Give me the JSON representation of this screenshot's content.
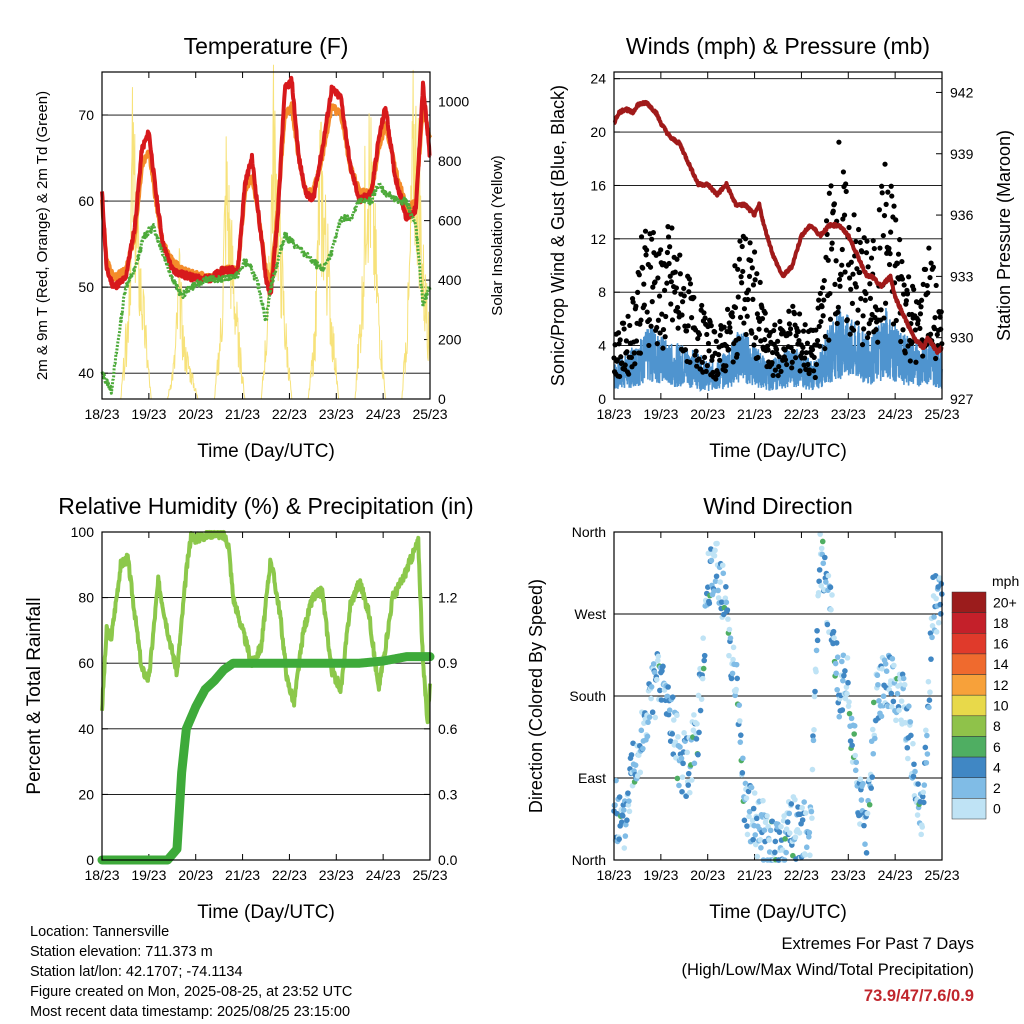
{
  "colors": {
    "temp_2m": "#d7191c",
    "temp_9m": "#f48c2a",
    "dewpoint": "#4daa3a",
    "solar": "#f7e27a",
    "wind_sonic": "#4f94cf",
    "wind_gust": "#000000",
    "pressure": "#a01a1a",
    "rh": "#8cc84b",
    "precip": "#3eaa3a"
  },
  "chart_data": [
    {
      "type": "line",
      "title": "Temperature (F)",
      "xlabel": "Time (Day/UTC)",
      "ylabel": "2m & 9m T (Red, Orange) & 2m Td (Green)",
      "y2label": "Solar Insolation (Yellow)",
      "xticks": [
        "18/23",
        "19/23",
        "20/23",
        "21/23",
        "22/23",
        "23/23",
        "24/23",
        "25/23"
      ],
      "xlim": [
        0,
        7
      ],
      "ylim": [
        37,
        75
      ],
      "yticks": [
        40,
        50,
        60,
        70
      ],
      "y2lim": [
        0,
        1100
      ],
      "y2ticks": [
        0,
        200,
        400,
        600,
        800,
        1000
      ],
      "grid": true,
      "series": [
        {
          "name": "2m T",
          "axis": "left",
          "x": [
            0,
            0.1,
            0.25,
            0.5,
            0.7,
            0.85,
            1,
            1.15,
            1.3,
            1.5,
            1.7,
            2,
            2.3,
            2.6,
            2.9,
            3.05,
            3.2,
            3.35,
            3.5,
            3.6,
            3.75,
            3.9,
            4.05,
            4.2,
            4.35,
            4.5,
            4.7,
            4.9,
            5.1,
            5.3,
            5.5,
            5.75,
            5.9,
            6.05,
            6.25,
            6.5,
            6.7,
            6.85,
            7
          ],
          "y": [
            61,
            52,
            50,
            51,
            57,
            66,
            68,
            61,
            55,
            52,
            51.5,
            51,
            51,
            52,
            52,
            62,
            65,
            58,
            51,
            49,
            58,
            73,
            74,
            65,
            61,
            60,
            66,
            73,
            72,
            64,
            60,
            61,
            67,
            71,
            63,
            58,
            59,
            73.5,
            65
          ]
        },
        {
          "name": "9m T",
          "axis": "left",
          "x": [
            0,
            0.1,
            0.25,
            0.5,
            0.7,
            0.85,
            1,
            1.15,
            1.3,
            1.5,
            1.7,
            2,
            2.3,
            2.6,
            2.9,
            3.05,
            3.2,
            3.35,
            3.5,
            3.6,
            3.75,
            3.9,
            4.05,
            4.2,
            4.35,
            4.5,
            4.7,
            4.9,
            5.1,
            5.3,
            5.5,
            5.75,
            5.9,
            6.05,
            6.25,
            6.5,
            6.7,
            6.85,
            7
          ],
          "y": [
            60,
            53,
            51,
            52,
            56,
            64,
            66,
            60,
            55,
            53,
            52,
            51.5,
            51,
            52,
            52,
            61,
            63,
            58,
            52,
            50,
            59,
            70,
            71,
            65,
            61,
            61,
            65,
            71,
            70,
            64,
            61,
            61,
            66,
            69,
            64,
            59,
            60,
            71,
            67
          ]
        },
        {
          "name": "2m Td",
          "axis": "left",
          "x": [
            0,
            0.2,
            0.35,
            0.5,
            0.7,
            0.9,
            1.1,
            1.3,
            1.5,
            1.7,
            1.9,
            2.1,
            2.3,
            2.6,
            2.9,
            3.05,
            3.2,
            3.35,
            3.5,
            3.6,
            3.75,
            3.9,
            4.1,
            4.3,
            4.5,
            4.7,
            4.9,
            5.1,
            5.3,
            5.5,
            5.75,
            5.9,
            6.05,
            6.3,
            6.5,
            6.7,
            6.85,
            7
          ],
          "y": [
            40,
            38,
            44,
            50,
            52,
            56,
            57,
            54,
            51,
            49,
            50,
            50.5,
            51,
            51,
            51.5,
            53,
            52,
            50,
            46,
            50,
            53,
            56,
            55,
            54,
            53,
            52,
            54,
            58,
            58,
            60,
            60,
            62,
            61,
            60,
            60,
            57,
            48,
            50
          ]
        },
        {
          "name": "Solar",
          "axis": "right",
          "x": [
            0,
            0.4,
            0.55,
            0.65,
            0.75,
            0.9,
            1.05,
            1.4,
            1.55,
            1.65,
            1.75,
            1.9,
            2.05,
            2.4,
            2.55,
            2.65,
            2.75,
            2.9,
            3.05,
            3.4,
            3.55,
            3.65,
            3.75,
            3.9,
            4.05,
            4.4,
            4.55,
            4.65,
            4.75,
            4.9,
            5.05,
            5.4,
            5.55,
            5.65,
            5.75,
            5.9,
            6.05,
            6.4,
            6.55,
            6.65,
            6.75,
            6.85,
            7
          ],
          "y": [
            0,
            0,
            300,
            950,
            600,
            300,
            0,
            0,
            150,
            450,
            200,
            100,
            0,
            0,
            300,
            850,
            600,
            250,
            0,
            0,
            350,
            1050,
            800,
            300,
            0,
            0,
            250,
            900,
            700,
            300,
            0,
            0,
            400,
            1000,
            850,
            350,
            0,
            0,
            400,
            1050,
            900,
            500,
            200
          ]
        }
      ]
    },
    {
      "type": "scatter",
      "title": "Winds (mph) & Pressure (mb)",
      "xlabel": "Time (Day/UTC)",
      "ylabel": "Sonic/Prop Wind & Gust (Blue, Black)",
      "y2label": "Station Pressure (Maroon)",
      "xticks": [
        "18/23",
        "19/23",
        "20/23",
        "21/23",
        "22/23",
        "23/23",
        "24/23",
        "25/23"
      ],
      "xlim": [
        0,
        7
      ],
      "ylim": [
        0,
        24.5
      ],
      "yticks": [
        0,
        4,
        8,
        12,
        16,
        20,
        24
      ],
      "y2lim": [
        927,
        943
      ],
      "y2ticks": [
        927,
        930,
        933,
        936,
        939,
        942
      ],
      "grid": true,
      "series": [
        {
          "name": "Gust",
          "x": [
            0,
            0.3,
            0.6,
            0.8,
            1,
            1.2,
            1.5,
            1.8,
            2,
            2.2,
            2.5,
            2.7,
            3,
            3.3,
            3.6,
            3.8,
            4,
            4.3,
            4.6,
            4.8,
            5,
            5.2,
            5.5,
            5.8,
            6,
            6.2,
            6.5,
            6.7,
            7
          ],
          "y": [
            4,
            5,
            10,
            12,
            9,
            11,
            8,
            6,
            5,
            4,
            6,
            11,
            9,
            4,
            5,
            6,
            5,
            4,
            13,
            16,
            12,
            11,
            9,
            15,
            12,
            9,
            6,
            10,
            5
          ]
        },
        {
          "name": "Sonic",
          "x": [
            0,
            0.3,
            0.6,
            0.8,
            1,
            1.2,
            1.5,
            1.8,
            2,
            2.2,
            2.5,
            2.7,
            3,
            3.3,
            3.6,
            3.8,
            4,
            4.3,
            4.6,
            4.8,
            5,
            5.2,
            5.5,
            5.8,
            6,
            6.2,
            6.5,
            6.7,
            7
          ],
          "y": [
            2,
            2.5,
            3.5,
            4,
            3.5,
            3,
            3,
            2.5,
            2,
            2,
            3,
            4,
            3,
            2,
            2.5,
            3,
            2.5,
            2,
            4,
            5,
            4.5,
            4,
            3.5,
            5,
            4,
            3.5,
            3,
            3.5,
            2.5
          ]
        },
        {
          "name": "Pressure",
          "axis": "right",
          "type": "line",
          "x": [
            0,
            0.1,
            0.25,
            0.4,
            0.5,
            0.7,
            0.9,
            1,
            1.2,
            1.4,
            1.6,
            1.8,
            2,
            2.2,
            2.4,
            2.6,
            2.8,
            3,
            3.1,
            3.2,
            3.4,
            3.6,
            3.8,
            4,
            4.2,
            4.4,
            4.6,
            4.8,
            5,
            5.2,
            5.4,
            5.5,
            5.7,
            5.9,
            6.0,
            6.2,
            6.4,
            6.6,
            6.7,
            6.9,
            7
          ],
          "y": [
            940.5,
            941,
            941.2,
            941,
            941.4,
            941.5,
            941,
            940.5,
            939.8,
            939.5,
            938.5,
            937.5,
            937.5,
            937,
            937.5,
            936.5,
            936.5,
            936,
            936.5,
            935.5,
            934,
            933,
            933.5,
            935,
            935.5,
            935,
            935.5,
            935.5,
            935,
            934,
            933,
            933,
            932.5,
            933,
            932,
            931,
            930,
            929.5,
            930,
            929.3,
            929.5
          ]
        }
      ]
    },
    {
      "type": "line",
      "title": "Relative Humidity (%) & Precipitation (in)",
      "xlabel": "Time (Day/UTC)",
      "ylabel": "Percent & Total Rainfall",
      "xticks": [
        "18/23",
        "19/23",
        "20/23",
        "21/23",
        "22/23",
        "23/23",
        "24/23",
        "25/23"
      ],
      "xlim": [
        0,
        7
      ],
      "ylim": [
        0,
        100
      ],
      "yticks": [
        0,
        20,
        40,
        60,
        80,
        100
      ],
      "y2lim": [
        0,
        1.5
      ],
      "y2ticks": [
        "0.0",
        "0.3",
        "0.6",
        "0.9",
        "1.2"
      ],
      "grid": true,
      "series": [
        {
          "name": "RH",
          "axis": "left",
          "x": [
            0,
            0.1,
            0.2,
            0.4,
            0.55,
            0.7,
            0.85,
            1,
            1.2,
            1.4,
            1.6,
            1.8,
            1.9,
            2,
            2.2,
            2.4,
            2.6,
            2.7,
            2.8,
            3,
            3.2,
            3.4,
            3.6,
            3.8,
            3.95,
            4.1,
            4.3,
            4.5,
            4.7,
            4.9,
            5.1,
            5.3,
            5.5,
            5.7,
            5.9,
            6.05,
            6.2,
            6.4,
            6.6,
            6.75,
            6.85,
            6.95,
            7
          ],
          "y": [
            46,
            70,
            68,
            90,
            92,
            75,
            58,
            55,
            85,
            70,
            57,
            88,
            99,
            98,
            99,
            100,
            99,
            96,
            80,
            70,
            60,
            65,
            92,
            75,
            55,
            48,
            70,
            80,
            82,
            58,
            52,
            78,
            85,
            75,
            52,
            65,
            80,
            85,
            92,
            97,
            60,
            42,
            55
          ]
        },
        {
          "name": "Precip",
          "axis": "right",
          "x": [
            0,
            0.5,
            1,
            1.4,
            1.6,
            1.7,
            1.8,
            2,
            2.2,
            2.4,
            2.6,
            2.8,
            3,
            3.5,
            4,
            4.5,
            5,
            5.5,
            6,
            6.5,
            7
          ],
          "y": [
            0,
            0,
            0,
            0,
            0.05,
            0.4,
            0.6,
            0.7,
            0.78,
            0.82,
            0.87,
            0.9,
            0.9,
            0.9,
            0.9,
            0.9,
            0.9,
            0.9,
            0.91,
            0.93,
            0.93
          ]
        }
      ]
    },
    {
      "type": "scatter",
      "title": "Wind Direction",
      "xlabel": "Time (Day/UTC)",
      "ylabel": "Direction (Colored By Speed)",
      "xticks": [
        "18/23",
        "19/23",
        "20/23",
        "21/23",
        "22/23",
        "23/23",
        "24/23",
        "25/23"
      ],
      "xlim": [
        0,
        7
      ],
      "ylim": [
        0,
        360
      ],
      "yticks": [
        "North",
        "East",
        "South",
        "West",
        "North"
      ],
      "grid": true,
      "colorbar": {
        "title": "mph",
        "labels": [
          "20+",
          "18",
          "16",
          "14",
          "12",
          "10",
          "8",
          "6",
          "4",
          "2",
          "0"
        ],
        "colors": [
          "#9b1c1c",
          "#c4202a",
          "#e03a2b",
          "#ef6a2e",
          "#f7a13a",
          "#e8d94a",
          "#8fc24a",
          "#4fae62",
          "#4087c4",
          "#80bce6",
          "#bfe3f5"
        ]
      },
      "series": [
        {
          "name": "Direction",
          "x": [
            0,
            0.2,
            0.4,
            0.6,
            0.8,
            1,
            1.2,
            1.4,
            1.6,
            1.8,
            2,
            2.2,
            2.4,
            2.6,
            2.8,
            3,
            3.2,
            3.4,
            3.6,
            3.8,
            4,
            4.2,
            4.4,
            4.6,
            4.8,
            5,
            5.2,
            5.4,
            5.6,
            5.8,
            6,
            6.2,
            6.4,
            6.6,
            6.8,
            7
          ],
          "y": [
            60,
            30,
            110,
            130,
            180,
            200,
            160,
            110,
            100,
            150,
            300,
            330,
            270,
            200,
            60,
            40,
            30,
            10,
            20,
            40,
            30,
            40,
            330,
            280,
            190,
            190,
            80,
            40,
            180,
            200,
            180,
            170,
            100,
            40,
            290,
            270
          ]
        }
      ]
    }
  ],
  "metadata": {
    "location": "Location: Tannersville",
    "elevation": "Station elevation: 711.373 m",
    "latlon": "Station lat/lon: 42.1707; -74.1134",
    "created": "Figure created on Mon, 2025-08-25, at 23:52 UTC",
    "recent": "Most recent data timestamp: 2025/08/25 23:15:00"
  },
  "extremes": {
    "title": "Extremes For Past 7 Days",
    "subtitle": "(High/Low/Max Wind/Total Precipitation)",
    "values": "73.9/47/7.6/0.9"
  }
}
